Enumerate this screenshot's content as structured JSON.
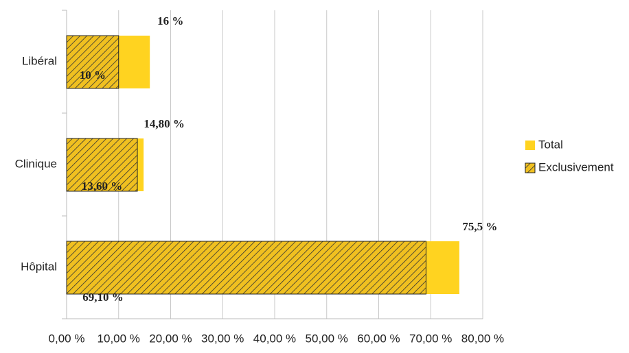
{
  "chart_data": {
    "type": "hbar",
    "categories": [
      "Libéral",
      "Clinique",
      "Hôpital"
    ],
    "series": [
      {
        "name": "Total",
        "color": "#ffd320",
        "values": [
          16,
          14.8,
          75.5
        ],
        "value_labels": [
          "16 %",
          "14,80 %",
          "75,5 %"
        ]
      },
      {
        "name": "Exclusivement",
        "color": "#f0c020",
        "pattern": "hatch",
        "values": [
          10,
          13.6,
          69.1
        ],
        "value_labels": [
          "10 %",
          "13,60 %",
          "69,10 %"
        ]
      }
    ],
    "xlim": [
      0,
      80
    ],
    "xticks": [
      {
        "value": 0,
        "label": "0,00 %"
      },
      {
        "value": 10,
        "label": "10,00 %"
      },
      {
        "value": 20,
        "label": "20,00 %"
      },
      {
        "value": 30,
        "label": "30,00 %"
      },
      {
        "value": 40,
        "label": "40,00 %"
      },
      {
        "value": 50,
        "label": "50,00 %"
      },
      {
        "value": 60,
        "label": "60,00 %"
      },
      {
        "value": 70,
        "label": "70,00 %"
      },
      {
        "value": 80,
        "label": "80,00 %"
      }
    ],
    "grid": true,
    "legend": "right"
  }
}
